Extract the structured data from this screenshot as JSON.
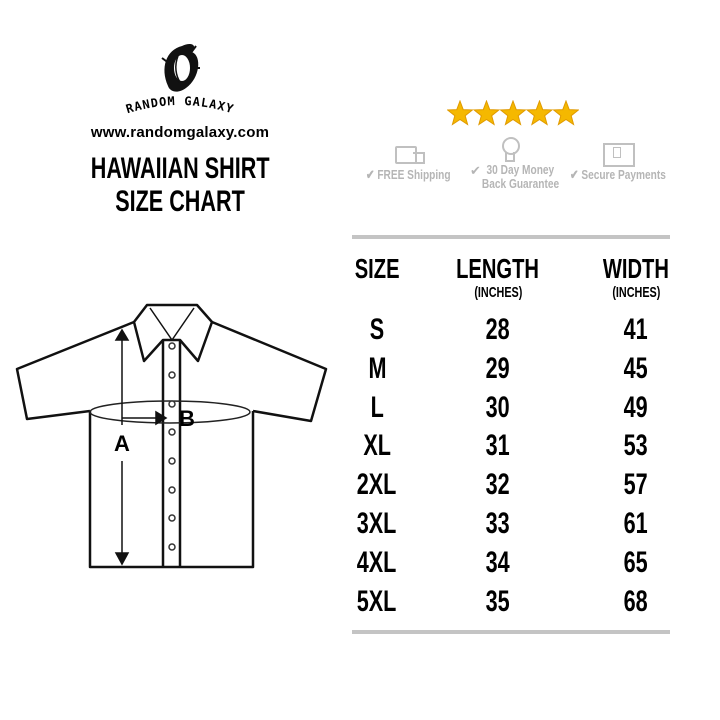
{
  "brand": {
    "name": "RANDOM GALAXY",
    "url": "www.randomgalaxy.com"
  },
  "title": {
    "line1": "HAWAIIAN SHIRT",
    "line2": "SIZE CHART"
  },
  "rating": {
    "stars": 5,
    "max": 5,
    "color": "#f5b800"
  },
  "badges": [
    {
      "icon": "truck-icon",
      "label": "FREE Shipping"
    },
    {
      "icon": "ribbon-icon",
      "label_line1": "30 Day Money",
      "label_line2": "Back Guarantee"
    },
    {
      "icon": "lock-icon",
      "label": "Secure Payments"
    }
  ],
  "diagram": {
    "label_a": "A",
    "label_b": "B"
  },
  "table": {
    "headers": [
      {
        "title": "SIZE",
        "sub": ""
      },
      {
        "title": "LENGTH",
        "sub": "(INCHES)"
      },
      {
        "title": "WIDTH",
        "sub": "(INCHES)"
      }
    ],
    "rows": [
      {
        "size": "S",
        "length": "28",
        "width": "41"
      },
      {
        "size": "M",
        "length": "29",
        "width": "45"
      },
      {
        "size": "L",
        "length": "30",
        "width": "49"
      },
      {
        "size": "XL",
        "length": "31",
        "width": "53"
      },
      {
        "size": "2XL",
        "length": "32",
        "width": "57"
      },
      {
        "size": "3XL",
        "length": "33",
        "width": "61"
      },
      {
        "size": "4XL",
        "length": "34",
        "width": "65"
      },
      {
        "size": "5XL",
        "length": "35",
        "width": "68"
      }
    ]
  }
}
